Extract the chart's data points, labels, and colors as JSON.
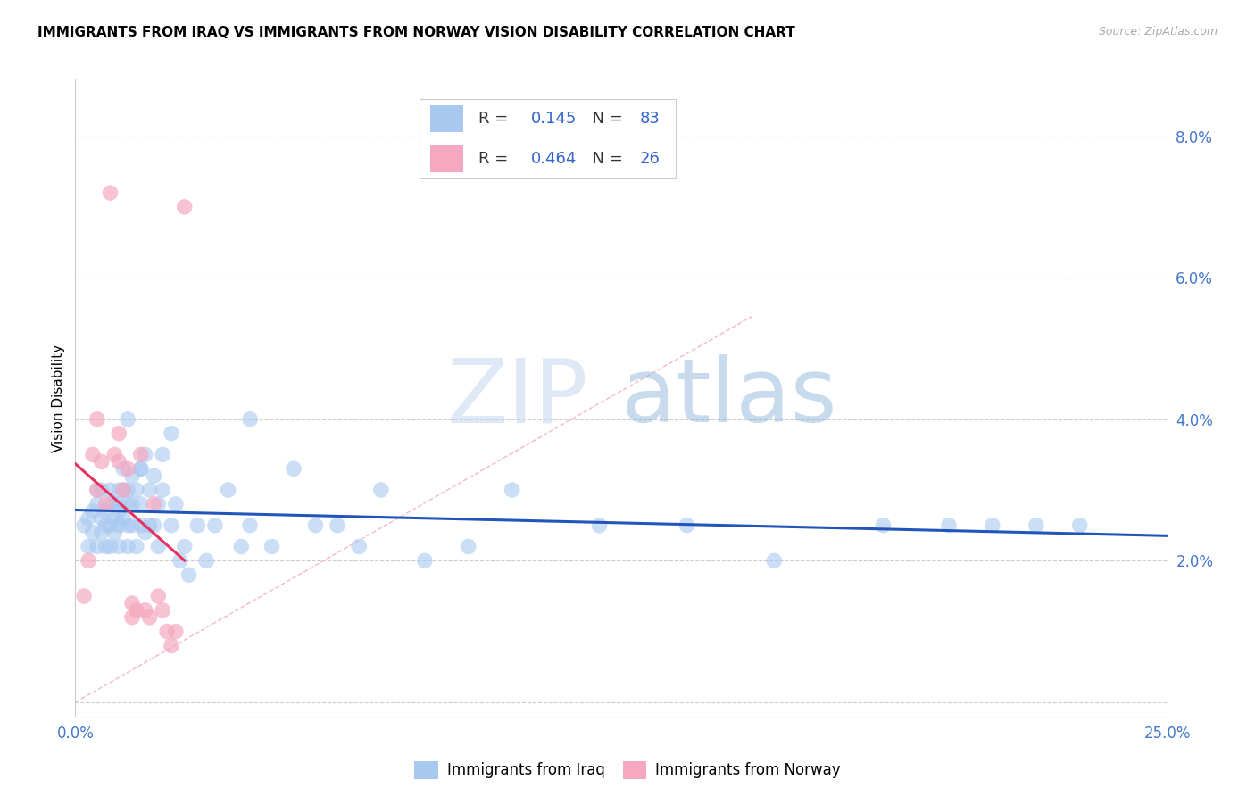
{
  "title": "IMMIGRANTS FROM IRAQ VS IMMIGRANTS FROM NORWAY VISION DISABILITY CORRELATION CHART",
  "source": "Source: ZipAtlas.com",
  "ylabel": "Vision Disability",
  "legend_label1": "Immigrants from Iraq",
  "legend_label2": "Immigrants from Norway",
  "R1": 0.145,
  "N1": 83,
  "R2": 0.464,
  "N2": 26,
  "xmin": 0.0,
  "xmax": 0.25,
  "ymin": -0.002,
  "ymax": 0.088,
  "yticks": [
    0.0,
    0.02,
    0.04,
    0.06,
    0.08
  ],
  "ytick_labels": [
    "",
    "2.0%",
    "4.0%",
    "6.0%",
    "8.0%"
  ],
  "xticks": [
    0.0,
    0.05,
    0.1,
    0.15,
    0.2,
    0.25
  ],
  "xtick_labels": [
    "0.0%",
    "",
    "",
    "",
    "",
    "25.0%"
  ],
  "color_iraq": "#A8C8F0",
  "color_norway": "#F5A8C0",
  "color_iraq_line": "#2255BB",
  "color_norway_line": "#E83060",
  "color_diag": "#F5B8C8",
  "iraq_x": [
    0.002,
    0.003,
    0.003,
    0.004,
    0.004,
    0.005,
    0.005,
    0.005,
    0.006,
    0.006,
    0.006,
    0.007,
    0.007,
    0.007,
    0.008,
    0.008,
    0.008,
    0.008,
    0.009,
    0.009,
    0.009,
    0.01,
    0.01,
    0.01,
    0.01,
    0.01,
    0.011,
    0.011,
    0.011,
    0.012,
    0.012,
    0.012,
    0.012,
    0.013,
    0.013,
    0.013,
    0.014,
    0.014,
    0.015,
    0.015,
    0.015,
    0.016,
    0.016,
    0.017,
    0.017,
    0.018,
    0.018,
    0.019,
    0.019,
    0.02,
    0.02,
    0.022,
    0.022,
    0.023,
    0.024,
    0.025,
    0.026,
    0.028,
    0.03,
    0.032,
    0.035,
    0.038,
    0.04,
    0.045,
    0.05,
    0.055,
    0.06,
    0.065,
    0.07,
    0.08,
    0.09,
    0.1,
    0.12,
    0.14,
    0.16,
    0.185,
    0.2,
    0.21,
    0.22,
    0.23,
    0.012,
    0.015,
    0.04
  ],
  "iraq_y": [
    0.025,
    0.022,
    0.026,
    0.024,
    0.027,
    0.028,
    0.022,
    0.03,
    0.026,
    0.024,
    0.03,
    0.027,
    0.025,
    0.022,
    0.028,
    0.025,
    0.022,
    0.03,
    0.026,
    0.024,
    0.028,
    0.027,
    0.025,
    0.03,
    0.022,
    0.028,
    0.03,
    0.026,
    0.033,
    0.028,
    0.025,
    0.03,
    0.022,
    0.032,
    0.025,
    0.028,
    0.03,
    0.022,
    0.033,
    0.028,
    0.025,
    0.035,
    0.024,
    0.03,
    0.025,
    0.032,
    0.025,
    0.028,
    0.022,
    0.035,
    0.03,
    0.038,
    0.025,
    0.028,
    0.02,
    0.022,
    0.018,
    0.025,
    0.02,
    0.025,
    0.03,
    0.022,
    0.025,
    0.022,
    0.033,
    0.025,
    0.025,
    0.022,
    0.03,
    0.02,
    0.022,
    0.03,
    0.025,
    0.025,
    0.02,
    0.025,
    0.025,
    0.025,
    0.025,
    0.025,
    0.04,
    0.033,
    0.04
  ],
  "norway_x": [
    0.002,
    0.003,
    0.004,
    0.005,
    0.005,
    0.006,
    0.007,
    0.008,
    0.009,
    0.01,
    0.01,
    0.011,
    0.012,
    0.013,
    0.013,
    0.014,
    0.015,
    0.016,
    0.017,
    0.018,
    0.019,
    0.02,
    0.021,
    0.022,
    0.023,
    0.025
  ],
  "norway_y": [
    0.015,
    0.02,
    0.035,
    0.04,
    0.03,
    0.034,
    0.028,
    0.072,
    0.035,
    0.038,
    0.034,
    0.03,
    0.033,
    0.014,
    0.012,
    0.013,
    0.035,
    0.013,
    0.012,
    0.028,
    0.015,
    0.013,
    0.01,
    0.008,
    0.01,
    0.07
  ]
}
